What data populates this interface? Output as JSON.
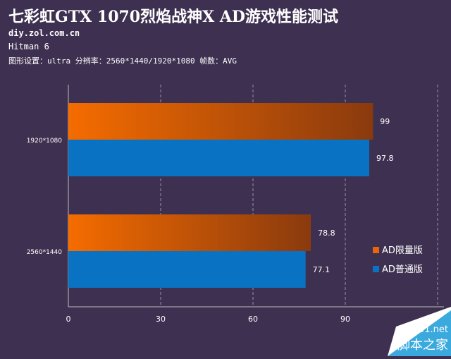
{
  "header": {
    "title": "七彩虹GTX 1070烈焰战神X AD游戏性能测试",
    "site": "diy.zol.com.cn",
    "game": "Hitman 6",
    "settings": "图形设置：ultra 分辨率：2560*1440/1920*1080 帧数：AVG"
  },
  "watermark": {
    "line1": "jb51.net",
    "line2": "脚本之家"
  },
  "chart_data": {
    "type": "bar",
    "orientation": "horizontal",
    "categories": [
      "1920*1080",
      "2560*1440"
    ],
    "series": [
      {
        "name": "AD限量版",
        "values": [
          99,
          78.8
        ],
        "color": "#e8660a"
      },
      {
        "name": "AD普通版",
        "values": [
          97.8,
          77.1
        ],
        "color": "#0a72c2"
      }
    ],
    "xticks": [
      0,
      30,
      60,
      90
    ],
    "xlim": [
      0,
      120
    ],
    "grid": "vertical dashed",
    "legend": "right"
  }
}
